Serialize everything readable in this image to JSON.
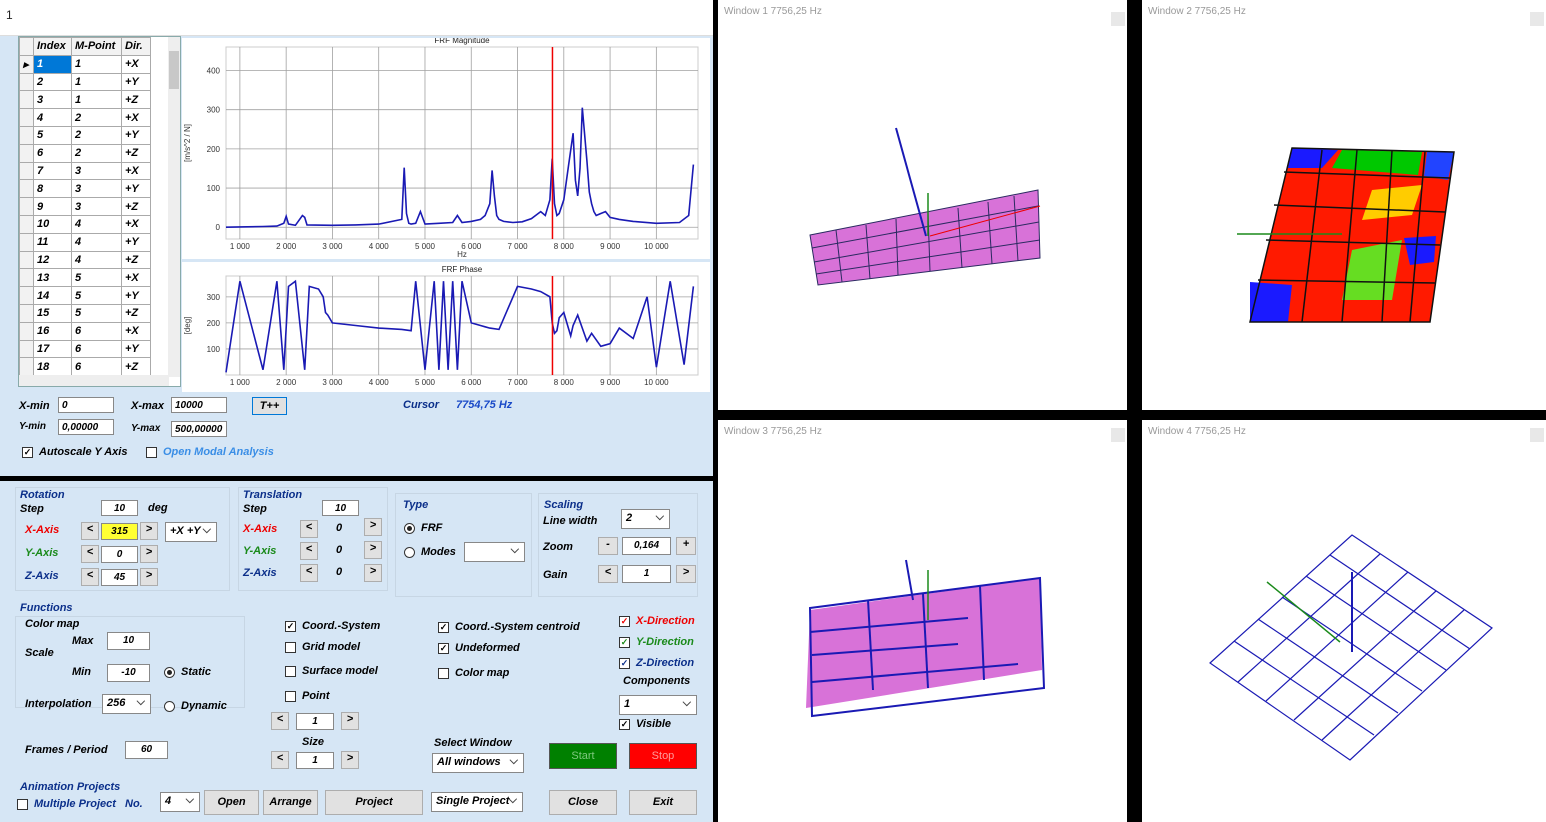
{
  "titlebar": {
    "text": "1"
  },
  "grid": {
    "headers": [
      "Index",
      "M-Point",
      "Dir."
    ],
    "rows": [
      [
        "1",
        "1",
        "+X"
      ],
      [
        "2",
        "1",
        "+Y"
      ],
      [
        "3",
        "1",
        "+Z"
      ],
      [
        "4",
        "2",
        "+X"
      ],
      [
        "5",
        "2",
        "+Y"
      ],
      [
        "6",
        "2",
        "+Z"
      ],
      [
        "7",
        "3",
        "+X"
      ],
      [
        "8",
        "3",
        "+Y"
      ],
      [
        "9",
        "3",
        "+Z"
      ],
      [
        "10",
        "4",
        "+X"
      ],
      [
        "11",
        "4",
        "+Y"
      ],
      [
        "12",
        "4",
        "+Z"
      ],
      [
        "13",
        "5",
        "+X"
      ],
      [
        "14",
        "5",
        "+Y"
      ],
      [
        "15",
        "5",
        "+Z"
      ],
      [
        "16",
        "6",
        "+X"
      ],
      [
        "17",
        "6",
        "+Y"
      ],
      [
        "18",
        "6",
        "+Z"
      ]
    ],
    "selected_index": 0,
    "indicator": "▸"
  },
  "frf_panel": {
    "xmin_label": "X-min",
    "xmin": "0",
    "xmax_label": "X-max",
    "xmax": "10000",
    "ymin_label": "Y-min",
    "ymin": "0,00000",
    "ymax_label": "Y-max",
    "ymax": "500,00000",
    "tpp_button": "T++",
    "cursor_label": "Cursor",
    "cursor_value": "7754,75 Hz",
    "autoscale_label": "Autoscale Y Axis",
    "autoscale_checked": true,
    "open_modal_label": "Open Modal Analysis",
    "open_modal_checked": false
  },
  "chart_data": [
    {
      "type": "line",
      "title": "FRF Magnitude",
      "xlabel": "Hz",
      "ylabel": "[m/s^2 / N]",
      "xlim": [
        700,
        10900
      ],
      "ylim": [
        -30,
        460
      ],
      "xticks": [
        "1 000",
        "2 000",
        "3 000",
        "4 000",
        "5 000",
        "6 000",
        "7 000",
        "8 000",
        "9 000",
        "10 000"
      ],
      "yticks": [
        "0",
        "100",
        "200",
        "300",
        "400"
      ],
      "cursor_x": 7755,
      "color": "#1a1ab4",
      "x": [
        700,
        1000,
        1500,
        1800,
        1950,
        2000,
        2050,
        2200,
        2350,
        2400,
        2450,
        3000,
        3500,
        4000,
        4500,
        4550,
        4600,
        4650,
        4700,
        4800,
        4900,
        5000,
        5300,
        5600,
        5700,
        5800,
        6000,
        6200,
        6300,
        6400,
        6450,
        6500,
        6550,
        6600,
        6700,
        6900,
        7100,
        7300,
        7500,
        7600,
        7700,
        7750,
        7800,
        7850,
        7900,
        8000,
        8100,
        8200,
        8250,
        8300,
        8350,
        8400,
        8500,
        8550,
        8600,
        8650,
        8700,
        8800,
        8900,
        9000,
        9200,
        9500,
        10000,
        10500,
        10700,
        10800
      ],
      "y": [
        0,
        1,
        2,
        3,
        10,
        28,
        8,
        5,
        30,
        25,
        6,
        5,
        6,
        8,
        20,
        152,
        35,
        10,
        8,
        10,
        40,
        8,
        10,
        12,
        30,
        12,
        15,
        20,
        30,
        60,
        145,
        80,
        30,
        20,
        15,
        12,
        14,
        22,
        40,
        30,
        70,
        175,
        60,
        30,
        35,
        70,
        155,
        240,
        120,
        80,
        150,
        305,
        170,
        90,
        60,
        40,
        30,
        35,
        40,
        25,
        20,
        15,
        10,
        12,
        30,
        160
      ]
    },
    {
      "type": "line",
      "title": "FRF Phase",
      "xlabel": "",
      "ylabel": "[deg]",
      "xlim": [
        700,
        10900
      ],
      "ylim": [
        0,
        380
      ],
      "xticks": [
        "1 000",
        "2 000",
        "3 000",
        "4 000",
        "5 000",
        "6 000",
        "7 000",
        "8 000",
        "9 000",
        "10 000"
      ],
      "yticks": [
        "100",
        "200",
        "300"
      ],
      "cursor_x": 7755,
      "color": "#1a1ab4",
      "x": [
        700,
        1000,
        1500,
        1800,
        1950,
        2050,
        2200,
        2400,
        2500,
        2700,
        2800,
        2850,
        2900,
        3000,
        3500,
        4000,
        4500,
        4700,
        4800,
        5000,
        5200,
        5300,
        5400,
        5500,
        5600,
        5700,
        5800,
        6000,
        6200,
        6300,
        6400,
        6600,
        7000,
        7300,
        7500,
        7700,
        7750,
        7800,
        7850,
        7900,
        8000,
        8100,
        8150,
        8200,
        8300,
        8400,
        8500,
        8600,
        8800,
        9000,
        9200,
        9500,
        9800,
        10000,
        10300,
        10600,
        10800
      ],
      "y": [
        10,
        360,
        20,
        360,
        20,
        340,
        360,
        20,
        340,
        330,
        300,
        240,
        230,
        200,
        190,
        180,
        175,
        170,
        360,
        20,
        360,
        20,
        360,
        20,
        360,
        20,
        360,
        200,
        190,
        185,
        180,
        175,
        340,
        330,
        320,
        300,
        200,
        160,
        170,
        220,
        240,
        180,
        150,
        190,
        230,
        180,
        130,
        160,
        110,
        120,
        180,
        140,
        300,
        30,
        360,
        40,
        340
      ]
    }
  ],
  "rotation": {
    "title": "Rotation",
    "step_label": "Step",
    "step": "10",
    "deg": "deg",
    "x_label": "X-Axis",
    "x_val": "315",
    "y_label": "Y-Axis",
    "y_val": "0",
    "z_label": "Z-Axis",
    "z_val": "45",
    "view_select": "+X +Y",
    "dec": "<",
    "inc": ">"
  },
  "translation": {
    "title": "Translation",
    "step_label": "Step",
    "step": "10",
    "x_label": "X-Axis",
    "x_val": "0",
    "y_label": "Y-Axis",
    "y_val": "0",
    "z_label": "Z-Axis",
    "z_val": "0"
  },
  "type": {
    "title": "Type",
    "frf": "FRF",
    "modes": "Modes",
    "modes_select": ""
  },
  "scaling": {
    "title": "Scaling",
    "line_width_label": "Line width",
    "line_width": "2",
    "zoom_label": "Zoom",
    "zoom": "0,164",
    "zoom_dec": "-",
    "zoom_inc": "+",
    "gain_label": "Gain",
    "gain": "1"
  },
  "functions": {
    "title": "Functions",
    "colormap_label": "Color map",
    "scale_label": "Scale",
    "max_label": "Max",
    "max": "10",
    "min_label": "Min",
    "min": "-10",
    "static_label": "Static",
    "dynamic_label": "Dynamic",
    "interp_label": "Interpolation",
    "interp": "256",
    "frames_label": "Frames / Period",
    "frames": "60",
    "coord_system": "Coord.-System",
    "grid_model": "Grid model",
    "surface_model": "Surface model",
    "point": "Point",
    "point_val": "1",
    "size_label": "Size",
    "size_val": "1",
    "coord_centroid": "Coord.-System centroid",
    "undeformed": "Undeformed",
    "color_map": "Color map",
    "select_window_label": "Select Window",
    "select_window": "All windows",
    "x_dir": "X-Direction",
    "y_dir": "Y-Direction",
    "z_dir": "Z-Direction",
    "components_label": "Components",
    "components": "1",
    "visible": "Visible",
    "start": "Start",
    "stop": "Stop"
  },
  "animation": {
    "title": "Animation Projects",
    "multiple": "Multiple Project",
    "no_label": "No.",
    "no": "4",
    "open": "Open",
    "arrange": "Arrange",
    "project": "Project",
    "single_project": "Single Project",
    "close": "Close",
    "exit": "Exit"
  },
  "windows": [
    {
      "label": "Window 1  7756,25 Hz"
    },
    {
      "label": "Window 2  7756,25 Hz"
    },
    {
      "label": "Window 3  7756,25 Hz"
    },
    {
      "label": "Window 4  7756,25 Hz"
    }
  ],
  "colors": {
    "panel": "#d6e6f5",
    "accent_yellow": "#ffff33",
    "start": "#008000",
    "stop": "#ff0000",
    "mesh_pink": "#d872d8",
    "mesh_blue": "#1a1ab4"
  }
}
